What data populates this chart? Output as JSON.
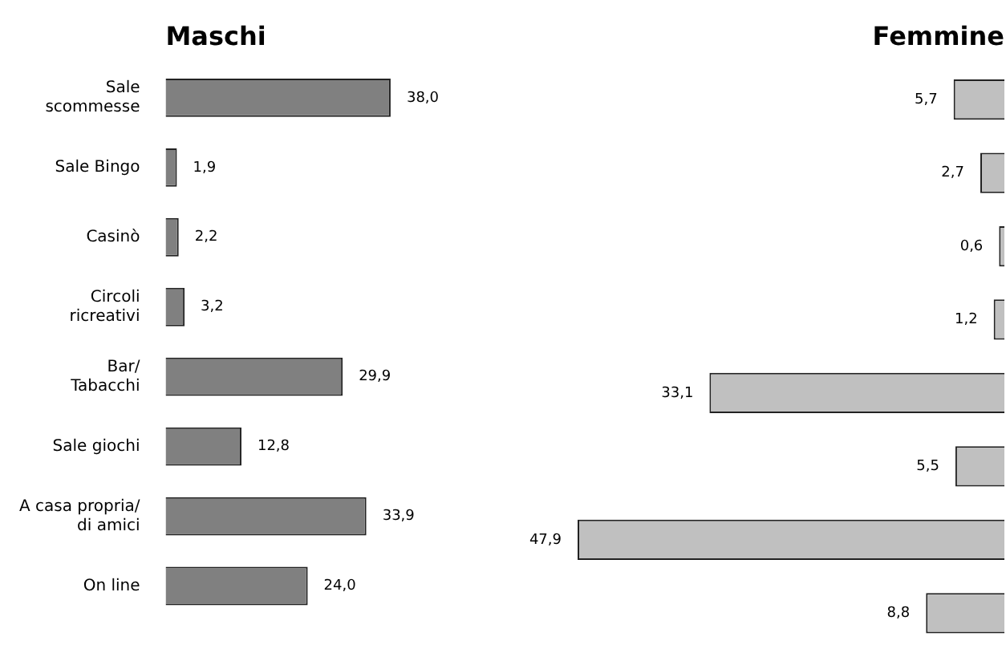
{
  "chart_data": [
    {
      "type": "bar",
      "orientation": "horizontal",
      "title": "Maschi",
      "categories": [
        "Sale scommesse",
        "Sale Bingo",
        "Casinò",
        "Circoli ricreativi",
        "Bar/ Tabacchi",
        "Sale giochi",
        "A casa propria/ di amici",
        "On line"
      ],
      "values": [
        38.0,
        1.9,
        2.2,
        3.2,
        29.9,
        12.8,
        33.9,
        24.0
      ],
      "value_labels": [
        "38,0",
        "1,9",
        "2,2",
        "3,2",
        "29,9",
        "12,8",
        "33,9",
        "24,0"
      ],
      "color": "#808080",
      "tick_labels": "y"
    },
    {
      "type": "bar",
      "orientation": "horizontal",
      "title": "Femmine",
      "categories": [
        null,
        null,
        null,
        null,
        null,
        null,
        null,
        null
      ],
      "values": [
        5.7,
        2.7,
        0.6,
        1.2,
        33.1,
        5.5,
        47.9,
        8.8
      ],
      "value_labels": [
        "5,7",
        "2,7",
        "0,6",
        "1,2",
        "33,1",
        "5,5",
        "47,9",
        "8,8"
      ],
      "color": "#c0c0c0",
      "tick_labels": false
    }
  ]
}
